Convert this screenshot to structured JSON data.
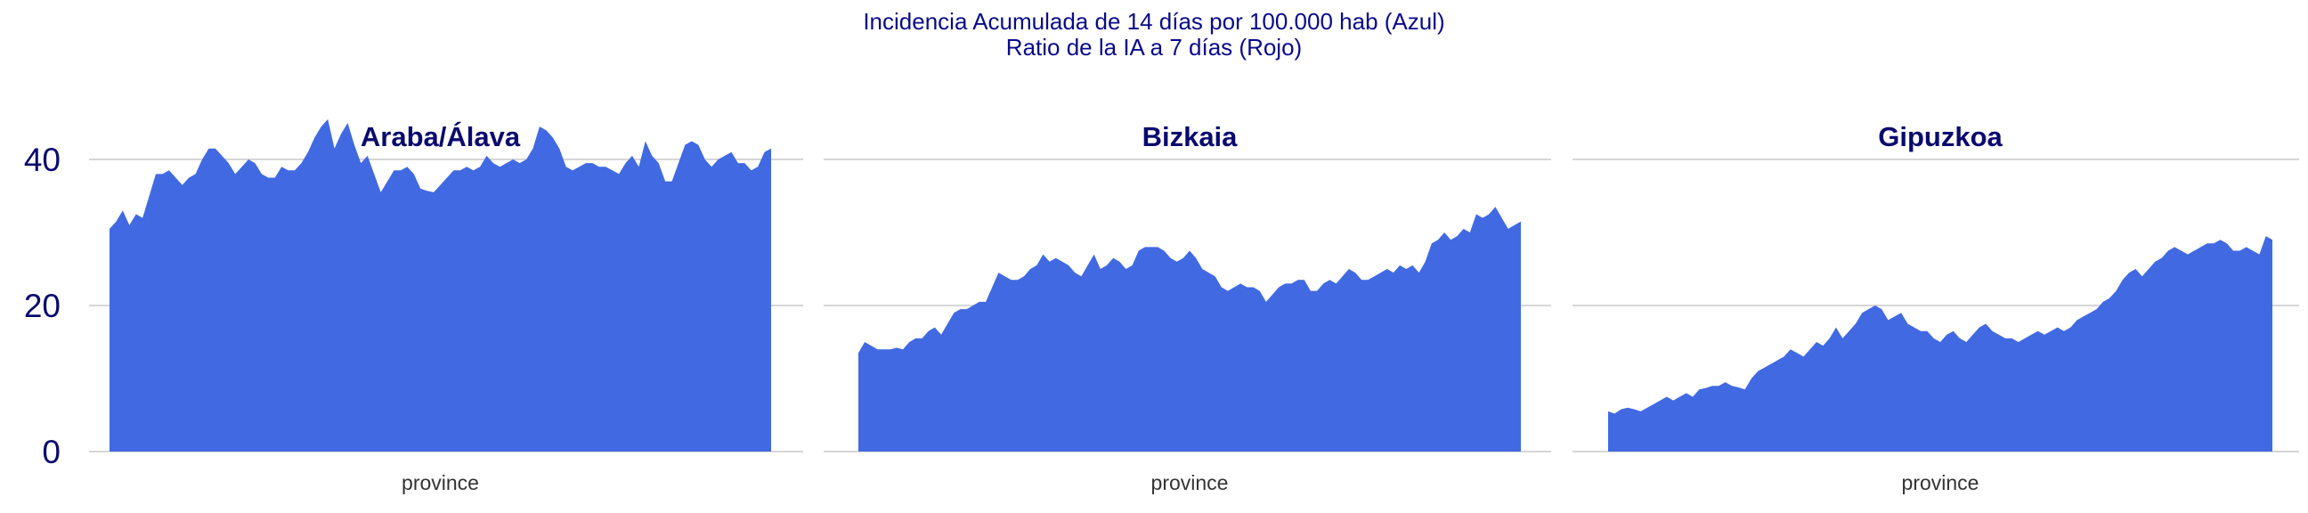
{
  "title_lines": [
    "Incidencia Acumulada de 14 días por 100.000 hab (Azul)",
    "Ratio de la IA a 7 días (Rojo)"
  ],
  "colors": {
    "area": "#4169e1",
    "title": "#0a0a8a",
    "grid": "#c8c8c8"
  },
  "chart_data": {
    "type": "area",
    "title": "Incidencia Acumulada de 14 días por 100.000 hab (Azul) / Ratio de la IA a 7 días (Rojo)",
    "ylim": [
      0,
      48
    ],
    "yticks": [
      0,
      20,
      40
    ],
    "grid": true,
    "xlabel": "province",
    "panels": [
      {
        "name": "Araba/Álava",
        "xlabel": "province",
        "values": [
          30.5,
          31.5,
          33,
          31,
          32.5,
          32,
          35,
          38,
          38,
          38.5,
          37.5,
          36.5,
          37.5,
          38,
          40,
          41.5,
          41.5,
          40.5,
          39.5,
          38,
          39,
          40,
          39.5,
          38,
          37.5,
          37.5,
          39,
          38.5,
          38.5,
          39.5,
          41,
          43,
          44.5,
          45.5,
          41.5,
          43.5,
          45,
          42,
          39.5,
          40.5,
          38,
          35.5,
          37,
          38.5,
          38.5,
          39,
          38,
          36,
          35.7,
          35.5,
          36.5,
          37.5,
          38.5,
          38.5,
          39,
          38.5,
          39,
          40.5,
          39.5,
          39,
          39.5,
          40,
          39.5,
          40,
          41.5,
          44.5,
          44,
          43,
          41.5,
          39,
          38.5,
          39,
          39.5,
          39.5,
          39,
          39,
          38.5,
          38,
          39.5,
          40.5,
          39,
          42.5,
          40.5,
          39.5,
          37,
          37,
          39.5,
          42,
          42.5,
          42,
          40,
          39,
          40,
          40.5,
          41,
          39.5,
          39.5,
          38.5,
          39,
          41,
          41.5
        ]
      },
      {
        "name": "Bizkaia",
        "xlabel": "province",
        "values": [
          13.5,
          15,
          14.5,
          14,
          14,
          14,
          14.2,
          14,
          15,
          15.5,
          15.5,
          16.5,
          17,
          16,
          17.5,
          19,
          19.5,
          19.5,
          20,
          20.5,
          20.5,
          22.5,
          24.5,
          24,
          23.5,
          23.5,
          24,
          25,
          25.5,
          27,
          26,
          26.5,
          26,
          25.5,
          24.5,
          24,
          25.5,
          27,
          25,
          25.5,
          26.5,
          26,
          25,
          25.5,
          27.5,
          28,
          28,
          28,
          27.5,
          26.5,
          26,
          26.5,
          27.5,
          26.5,
          25,
          24.5,
          24,
          22.5,
          22,
          22.5,
          23,
          22.5,
          22.5,
          22,
          20.5,
          21.5,
          22.5,
          23,
          23,
          23.5,
          23.5,
          22,
          22,
          23,
          23.5,
          23,
          24,
          25,
          24.5,
          23.5,
          23.5,
          24,
          24.5,
          25,
          24.5,
          25.5,
          25,
          25.5,
          24.5,
          26,
          28.5,
          29,
          30,
          29,
          29.5,
          30.5,
          30,
          32.5,
          32,
          32.5,
          33.5,
          32,
          30.5,
          31,
          31.5
        ]
      },
      {
        "name": "Gipuzkoa",
        "xlabel": "province",
        "values": [
          5.5,
          5.2,
          5.8,
          6,
          5.8,
          5.5,
          6,
          6.5,
          7,
          7.5,
          7,
          7.5,
          8,
          7.5,
          8.5,
          8.7,
          9,
          9,
          9.5,
          9,
          8.8,
          8.5,
          10,
          11,
          11.5,
          12,
          12.5,
          13,
          14,
          13.5,
          13,
          14,
          15,
          14.5,
          15.5,
          17,
          15.5,
          16.5,
          17.5,
          19,
          19.5,
          20,
          19.5,
          18,
          18.5,
          19,
          17.5,
          17,
          16.5,
          16.5,
          15.5,
          15,
          16,
          16.5,
          15.5,
          15,
          16,
          17,
          17.5,
          16.5,
          16,
          15.5,
          15.5,
          15,
          15.5,
          16,
          16.5,
          16,
          16.5,
          17,
          16.5,
          17,
          18,
          18.5,
          19,
          19.5,
          20.5,
          21,
          22,
          23.5,
          24.5,
          25,
          24,
          25,
          26,
          26.5,
          27.5,
          28,
          27.5,
          27,
          27.5,
          28,
          28.5,
          28.5,
          29,
          28.5,
          27.5,
          27.5,
          28,
          27.5,
          27,
          29.5,
          29
        ]
      }
    ]
  }
}
